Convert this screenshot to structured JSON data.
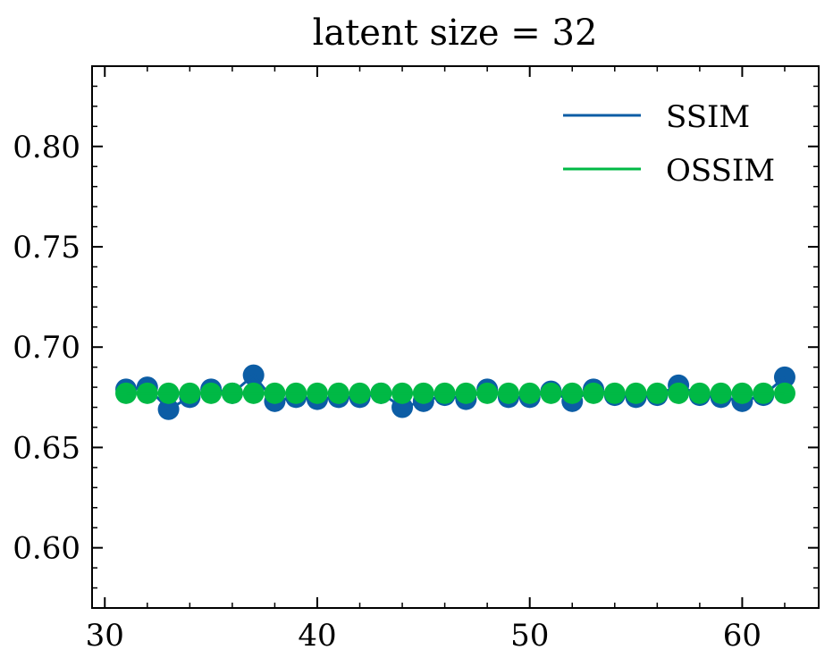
{
  "chart_data": {
    "type": "line",
    "title": "latent size = 32",
    "xlabel": "",
    "ylabel": "",
    "xlim": [
      29.4,
      63.6
    ],
    "ylim": [
      0.57,
      0.84
    ],
    "xticks": [
      30,
      40,
      50,
      60
    ],
    "xtick_labels": [
      "30",
      "40",
      "50",
      "60"
    ],
    "yticks": [
      0.6,
      0.65,
      0.7,
      0.75,
      0.8
    ],
    "ytick_labels": [
      "0.60",
      "0.65",
      "0.70",
      "0.75",
      "0.80"
    ],
    "legend_position": "top-right",
    "grid": false,
    "x": [
      31,
      32,
      33,
      34,
      35,
      36,
      37,
      38,
      39,
      40,
      41,
      42,
      43,
      44,
      45,
      46,
      47,
      48,
      49,
      50,
      51,
      52,
      53,
      54,
      55,
      56,
      57,
      58,
      59,
      60,
      61,
      62
    ],
    "series": [
      {
        "name": "SSIM",
        "color": "#0c5da5",
        "values": [
          0.679,
          0.68,
          0.669,
          0.675,
          0.679,
          0.677,
          0.686,
          0.673,
          0.675,
          0.674,
          0.675,
          0.675,
          0.677,
          0.67,
          0.673,
          0.676,
          0.674,
          0.679,
          0.675,
          0.675,
          0.678,
          0.673,
          0.679,
          0.676,
          0.675,
          0.676,
          0.681,
          0.676,
          0.675,
          0.673,
          0.676,
          0.685
        ]
      },
      {
        "name": "OSSIM",
        "color": "#00b945",
        "values": [
          0.677,
          0.677,
          0.677,
          0.677,
          0.677,
          0.677,
          0.677,
          0.677,
          0.677,
          0.677,
          0.677,
          0.677,
          0.677,
          0.677,
          0.677,
          0.677,
          0.677,
          0.677,
          0.677,
          0.677,
          0.677,
          0.677,
          0.677,
          0.677,
          0.677,
          0.677,
          0.677,
          0.677,
          0.677,
          0.677,
          0.677,
          0.677
        ]
      }
    ]
  }
}
